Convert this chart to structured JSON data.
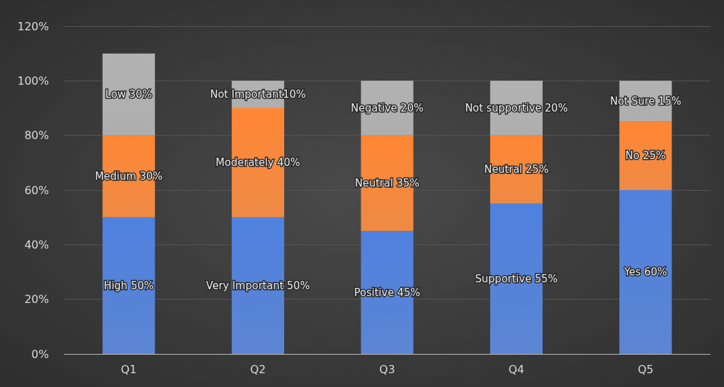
{
  "chart_data": {
    "type": "bar",
    "stacked": true,
    "categories": [
      "Q1",
      "Q2",
      "Q3",
      "Q4",
      "Q5"
    ],
    "series": [
      {
        "color": "#4a78cf",
        "values": [
          50,
          50,
          45,
          55,
          60
        ],
        "value_labels": [
          "High 50%",
          "Very Important 50%",
          "Positive 45%",
          "Supportive 55%",
          "Yes 60%"
        ]
      },
      {
        "color": "#ed7d31",
        "values": [
          30,
          40,
          35,
          25,
          25
        ],
        "value_labels": [
          "Medium 30%",
          "Moderately 40%",
          "Neutral 35%",
          "Neutral 25%",
          "No 25%"
        ]
      },
      {
        "color": "#a5a5a5",
        "values": [
          30,
          10,
          20,
          20,
          15
        ],
        "value_labels": [
          "Low 30%",
          "Not Important10%",
          "Negative 20%",
          "Not supportive 20%",
          "Not Sure 15%"
        ]
      }
    ],
    "ylim": [
      0,
      120
    ],
    "yticks": [
      {
        "value": 0,
        "label": "0%"
      },
      {
        "value": 20,
        "label": "20%"
      },
      {
        "value": 40,
        "label": "40%"
      },
      {
        "value": 60,
        "label": "60%"
      },
      {
        "value": 80,
        "label": "80%"
      },
      {
        "value": 100,
        "label": "100%"
      },
      {
        "value": 120,
        "label": "120%"
      }
    ],
    "grid": "y"
  }
}
